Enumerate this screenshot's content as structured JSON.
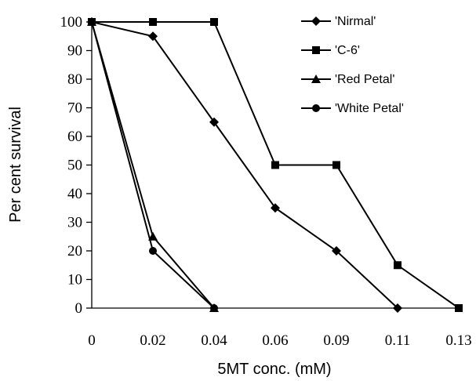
{
  "chart_data": {
    "type": "line",
    "categories": [
      "0",
      "0.02",
      "0.04",
      "0.06",
      "0.09",
      "0.11",
      "0.13"
    ],
    "ylim": [
      0,
      100
    ],
    "yticks": [
      0,
      10,
      20,
      30,
      40,
      50,
      60,
      70,
      80,
      90,
      100
    ],
    "xlabel": "5MT conc. (mM)",
    "ylabel": "Per cent survival",
    "grid": false,
    "legend_position": "top-right",
    "series": [
      {
        "name": "'Nirmal'",
        "marker": "diamond",
        "values": [
          100,
          95,
          65,
          35,
          20,
          0,
          null
        ]
      },
      {
        "name": "'C-6'",
        "marker": "square",
        "values": [
          100,
          100,
          100,
          50,
          50,
          15,
          0
        ]
      },
      {
        "name": "'Red Petal'",
        "marker": "triangle",
        "values": [
          100,
          25,
          0,
          null,
          null,
          null,
          null
        ]
      },
      {
        "name": "'White Petal'",
        "marker": "circle",
        "values": [
          100,
          20,
          0,
          null,
          null,
          null,
          null
        ]
      }
    ],
    "colors": {
      "line": "#000000",
      "marker": "#000000"
    }
  }
}
